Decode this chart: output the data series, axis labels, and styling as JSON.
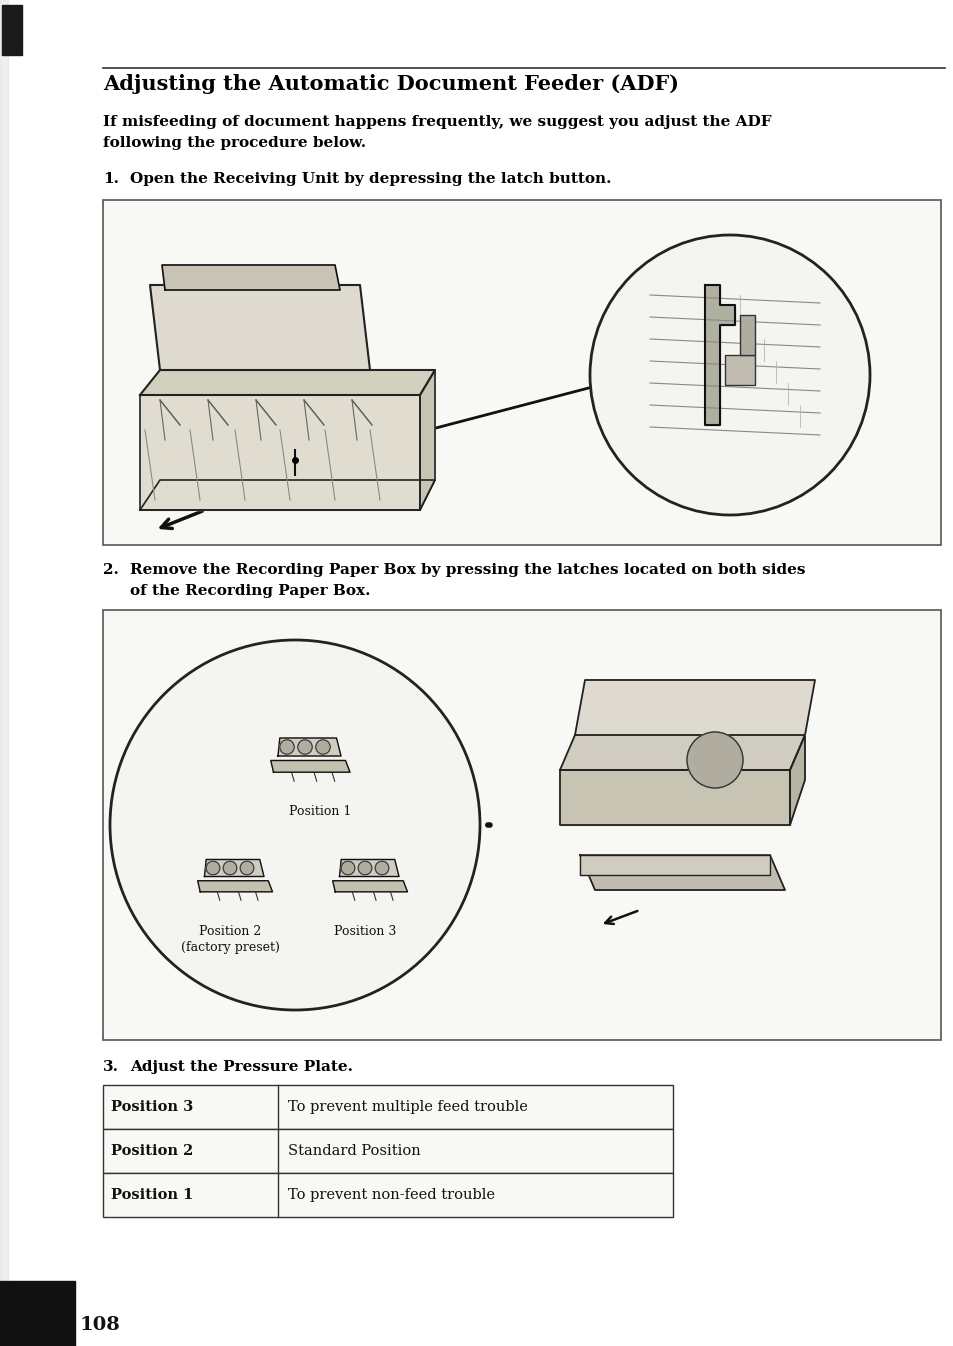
{
  "page_bg": "#ffffff",
  "title": "Adjusting the Automatic Document Feeder (ADF)",
  "intro_line1": "If misfeeding of document happens frequently, we suggest you adjust the ADF",
  "intro_line2": "following the procedure below.",
  "step1_num": "1.",
  "step1_text": "Open the Receiving Unit by depressing the latch button.",
  "step2_num": "2.",
  "step2_line1": "Remove the Recording Paper Box by pressing the latches located on both sides",
  "step2_line2": "of the Recording Paper Box.",
  "step3_num": "3.",
  "step3_text": "Adjust the Pressure Plate.",
  "pos1_label": "Position 1",
  "pos2_label": "Position 2\n(factory preset)",
  "pos3_label": "Position 3",
  "table_rows": [
    [
      "Position 3",
      "To prevent multiple feed trouble"
    ],
    [
      "Position 2",
      "Standard Position"
    ],
    [
      "Position 1",
      "To prevent non-feed trouble"
    ]
  ],
  "page_number": "108",
  "text_color": "#000000",
  "title_fontsize": 15,
  "body_fontsize": 11,
  "step_fontsize": 11,
  "table_fontsize": 10.5,
  "box_fill": "#f8f8f4",
  "box_edge": "#555555",
  "illus_fill": "#f0f0e8",
  "circle_fill": "#f4f4f0"
}
